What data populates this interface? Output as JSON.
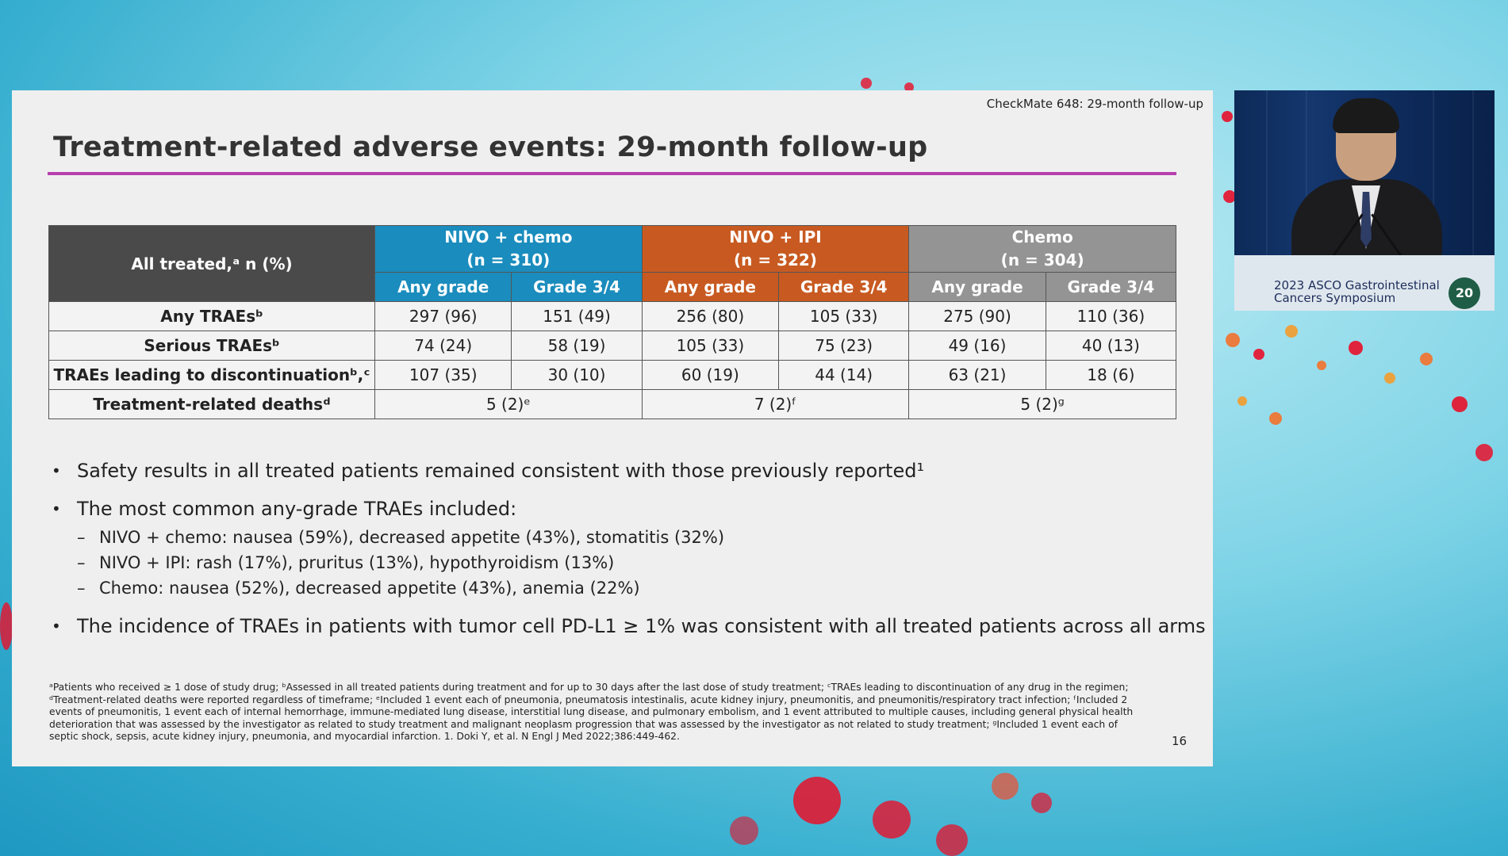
{
  "header": {
    "tag": "CheckMate 648: 29-month follow-up"
  },
  "slide": {
    "title": "Treatment-related adverse events: 29-month follow-up",
    "page": "16"
  },
  "table": {
    "corner_label": "All treated,ᵃ n (%)",
    "groups": [
      {
        "name": "NIVO + chemo",
        "n": "(n = 310)",
        "color": "#1a8cbd"
      },
      {
        "name": "NIVO + IPI",
        "n": "(n = 322)",
        "color": "#c85a21"
      },
      {
        "name": "Chemo",
        "n": "(n = 304)",
        "color": "#949494"
      }
    ],
    "sub_any": "Any grade",
    "sub_g34": "Grade 3/4",
    "rows": [
      {
        "label": "Any TRAEsᵇ",
        "vals": [
          "297 (96)",
          "151 (49)",
          "256 (80)",
          "105 (33)",
          "275 (90)",
          "110 (36)"
        ]
      },
      {
        "label": "Serious TRAEsᵇ",
        "vals": [
          "74 (24)",
          "58 (19)",
          "105 (33)",
          "75 (23)",
          "49 (16)",
          "40 (13)"
        ]
      },
      {
        "label": "TRAEs leading to discontinuationᵇ,ᶜ",
        "vals": [
          "107 (35)",
          "30 (10)",
          "60 (19)",
          "44 (14)",
          "63 (21)",
          "18 (6)"
        ]
      }
    ],
    "deaths": {
      "label": "Treatment-related deathsᵈ",
      "vals": [
        "5 (2)ᵉ",
        "7 (2)ᶠ",
        "5 (2)ᵍ"
      ]
    }
  },
  "bullets": {
    "b1": "Safety results in all treated patients remained consistent with those previously reported¹",
    "b2": "The most common any-grade TRAEs included:",
    "b2_subs": [
      "NIVO + chemo: nausea (59%), decreased appetite (43%), stomatitis (32%)",
      "NIVO + IPI: rash (17%), pruritus (13%), hypothyroidism (13%)",
      "Chemo: nausea (52%), decreased appetite (43%), anemia (22%)"
    ],
    "b3": "The incidence of TRAEs in patients with tumor cell PD-L1 ≥ 1% was consistent with all treated patients across all arms",
    "bullet_char": "•",
    "dash_char": "–"
  },
  "footnote": "ᵃPatients who received ≥ 1 dose of study drug; ᵇAssessed in all treated patients during treatment and for up to 30 days after the last dose of study treatment; ᶜTRAEs leading to discontinuation of any drug in the regimen; ᵈTreatment-related deaths were reported regardless of timeframe; ᵉIncluded 1 event each of pneumonia, pneumatosis intestinalis, acute kidney injury, pneumonitis, and pneumonitis/respiratory tract infection; ᶠIncluded 2 events of pneumonitis, 1 event each of internal hemorrhage, immune-mediated lung disease, interstitial lung disease, and pulmonary embolism, and 1 event attributed to multiple causes, including general physical health deterioration that was assessed by the investigator as related to study treatment and malignant neoplasm progression that was assessed by the investigator as not related to study treatment; ᵍIncluded 1 event each of septic shock, sepsis, acute kidney injury, pneumonia, and myocardial infarction. 1. Doki Y, et al. N Engl J Med 2022;386:449-462.",
  "video": {
    "podium_line1": "2023 ASCO Gastrointestinal",
    "podium_line2": "Cancers Symposium",
    "badge": "20"
  }
}
